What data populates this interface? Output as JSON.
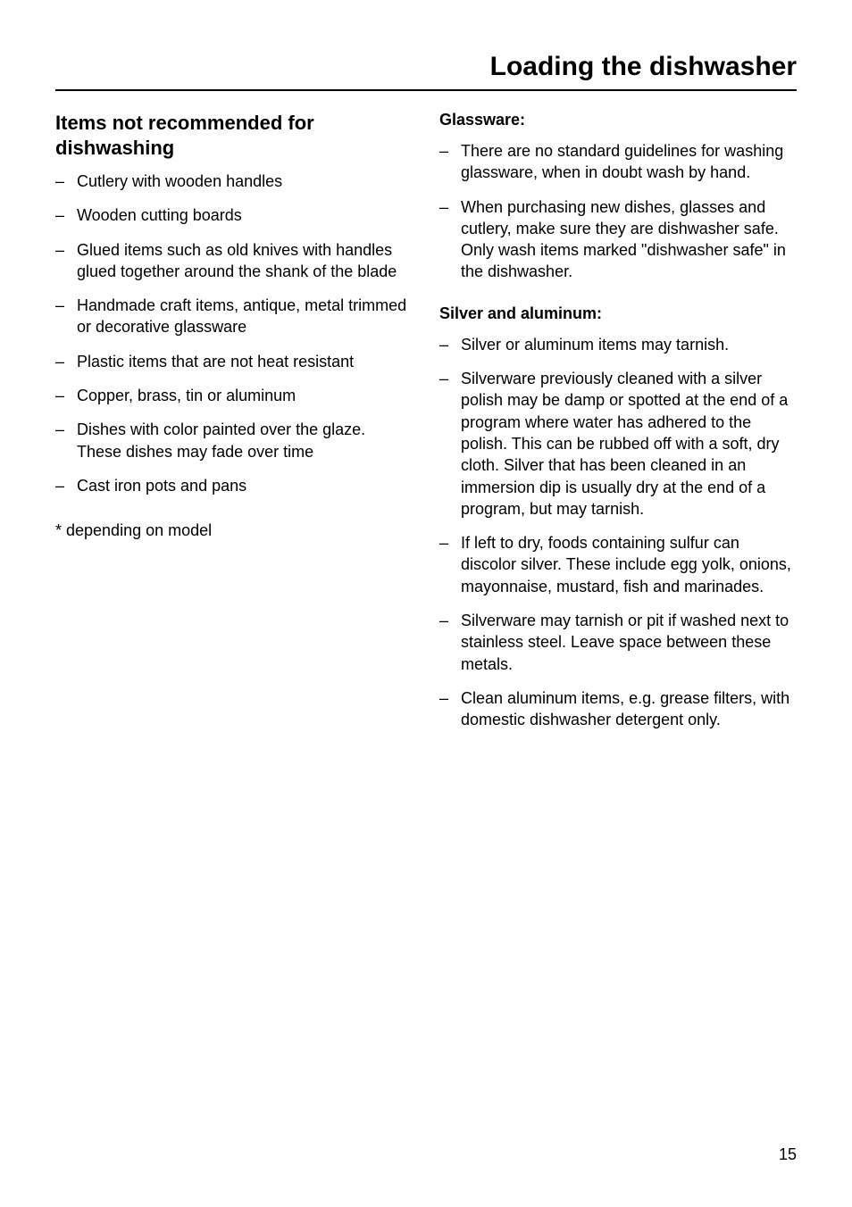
{
  "header": {
    "title": "Loading the dishwasher"
  },
  "left_column": {
    "heading": "Items not recommended for dishwashing",
    "items": [
      "Cutlery with wooden handles",
      "Wooden cutting boards",
      "Glued items such as old knives with handles glued together around the shank of the blade",
      "Handmade craft items, antique, metal trimmed or decorative glassware",
      "Plastic items that are not heat resistant",
      "Copper, brass, tin or aluminum",
      "Dishes with color painted over the glaze. These dishes may fade over time",
      "Cast iron pots and pans"
    ],
    "footnote": "* depending on model"
  },
  "right_column": {
    "glassware": {
      "heading": "Glassware:",
      "items": [
        "There are no standard guidelines for washing glassware, when in doubt wash by hand.",
        "When purchasing new dishes, glasses and cutlery, make sure they are dishwasher safe. Only wash items marked \"dishwasher safe\" in the dishwasher."
      ]
    },
    "silver": {
      "heading": "Silver and aluminum:",
      "items": [
        "Silver or aluminum items may tarnish.",
        "Silverware previously cleaned with a silver polish may be damp or spotted at the end of a program where water has adhered to the polish. This can be rubbed off with a soft, dry cloth. Silver that has been cleaned in an immersion dip is usually dry at the end of a program, but may tarnish.",
        "If left to dry, foods containing sulfur can discolor silver. These include egg yolk, onions, mayonnaise, mustard, fish and marinades.",
        "Silverware may tarnish or pit if washed next to stainless steel. Leave space between these metals.",
        "Clean aluminum items, e.g. grease filters, with domestic dishwasher detergent only."
      ]
    }
  },
  "page_number": "15"
}
